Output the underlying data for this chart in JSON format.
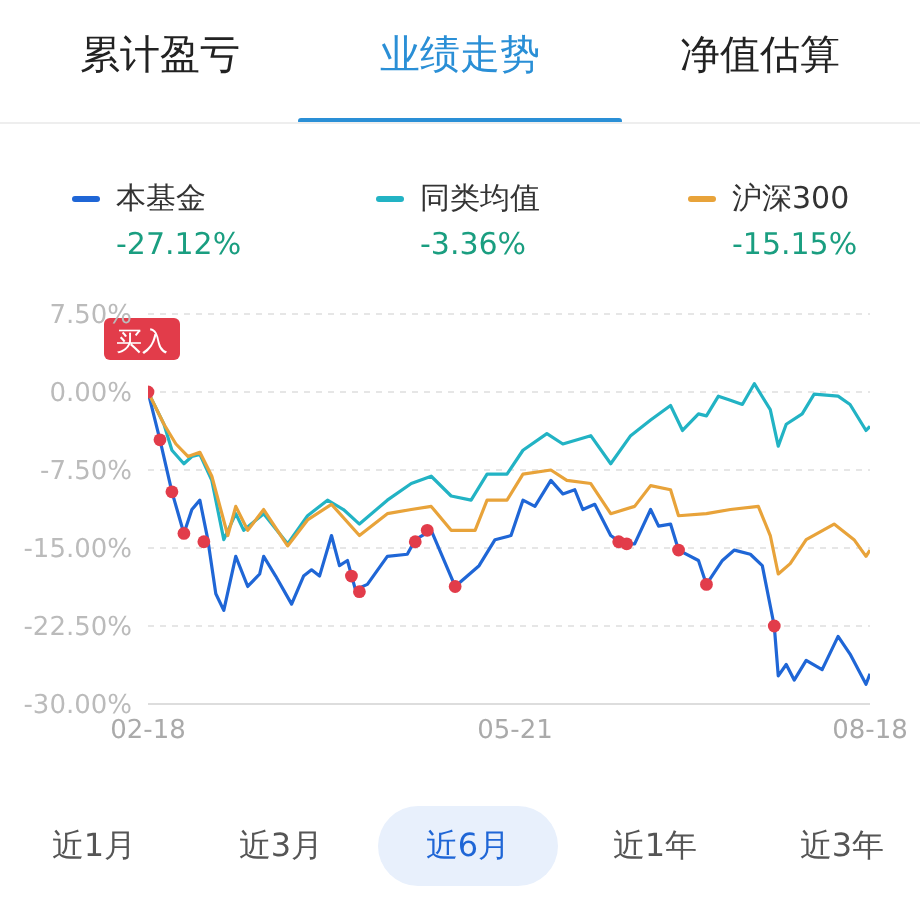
{
  "chart_data": {
    "type": "line",
    "legend": "top",
    "grid": "y",
    "xlim": [
      "--02-18",
      "--08-18"
    ],
    "xticks": [
      {
        "value": "--02-18",
        "label": "02-18"
      },
      {
        "value": "--05-21",
        "label": "05-21"
      },
      {
        "value": "--08-18",
        "label": "08-18"
      }
    ],
    "ylim": [
      -30,
      7.5
    ],
    "yticks": [
      {
        "value": 7.5,
        "label": "7.50%"
      },
      {
        "value": 0,
        "label": "0.00%"
      },
      {
        "value": -7.5,
        "label": "-7.50%"
      },
      {
        "value": -15,
        "label": "-15.00%"
      },
      {
        "value": -22.5,
        "label": "-22.50%"
      },
      {
        "value": -30,
        "label": "-30.00%"
      }
    ],
    "annotations": [
      "累计盈亏",
      "业绩走势",
      "净值估算",
      "-27.12%",
      "-3.36%",
      "-15.15%",
      "近1月",
      "近3月",
      "近6月",
      "近1年",
      "近3年",
      {
        "text": "买入",
        "x": "--02-18",
        "y": 0
      }
    ],
    "series": [
      {
        "name": "本基金",
        "color": "#1f66d6",
        "x": [
          "--02-18",
          "--02-21",
          "--02-24",
          "--02-27",
          "--03-01",
          "--03-03",
          "--03-05",
          "--03-07",
          "--03-09",
          "--03-12",
          "--03-15",
          "--03-18",
          "--03-19",
          "--03-22",
          "--03-26",
          "--03-29",
          "--03-31",
          "--04-02",
          "--04-05",
          "--04-07",
          "--04-09",
          "--04-11",
          "--04-14",
          "--04-19",
          "--04-24",
          "--04-26",
          "--04-30",
          "--05-06",
          "--05-12",
          "--05-16",
          "--05-20",
          "--05-23",
          "--05-26",
          "--05-30",
          "--06-02",
          "--06-05",
          "--06-07",
          "--06-10",
          "--06-14",
          "--06-17",
          "--06-20",
          "--06-24",
          "--06-26",
          "--06-29",
          "--07-01",
          "--07-06",
          "--07-08",
          "--07-12",
          "--07-15",
          "--07-19",
          "--07-22",
          "--07-25",
          "--07-26",
          "--07-28",
          "--07-30",
          "--08-02",
          "--08-06",
          "--08-10",
          "--08-13",
          "--08-17",
          "--08-18"
        ],
        "values": [
          0,
          -4.6,
          -9.6,
          -13.6,
          -11.3,
          -10.4,
          -14.2,
          -19.4,
          -21,
          -15.8,
          -18.7,
          -17.5,
          -15.8,
          -17.7,
          -20.4,
          -17.7,
          -17.1,
          -17.7,
          -13.8,
          -16.7,
          -16.2,
          -19,
          -18.5,
          -15.8,
          -15.6,
          -14.2,
          -13.3,
          -18.7,
          -16.7,
          -14.2,
          -13.8,
          -10.4,
          -11,
          -8.5,
          -9.8,
          -9.4,
          -11.3,
          -10.8,
          -13.8,
          -14.6,
          -14.6,
          -11.3,
          -12.9,
          -12.7,
          -15.2,
          -16.2,
          -18.5,
          -16.2,
          -15.2,
          -15.6,
          -16.7,
          -22.5,
          -27.3,
          -26.2,
          -27.7,
          -25.8,
          -26.7,
          -23.5,
          -25.2,
          -28.1,
          -27.1
        ]
      },
      {
        "name": "同类均值",
        "color": "#22b3c4",
        "x": [
          "--02-18",
          "--02-22",
          "--02-24",
          "--02-27",
          "--03-01",
          "--03-03",
          "--03-06",
          "--03-09",
          "--03-12",
          "--03-14",
          "--03-19",
          "--03-25",
          "--03-30",
          "--04-04",
          "--04-08",
          "--04-12",
          "--04-19",
          "--04-25",
          "--04-30",
          "--05-05",
          "--05-10",
          "--05-14",
          "--05-19",
          "--05-23",
          "--05-29",
          "--06-02",
          "--06-09",
          "--06-14",
          "--06-19",
          "--06-24",
          "--06-29",
          "--07-02",
          "--07-06",
          "--07-08",
          "--07-11",
          "--07-14",
          "--07-17",
          "--07-20",
          "--07-24",
          "--07-26",
          "--07-28",
          "--08-01",
          "--08-04",
          "--08-10",
          "--08-13",
          "--08-17",
          "--08-18"
        ],
        "values": [
          0,
          -3.1,
          -5.6,
          -6.9,
          -6.2,
          -6,
          -8.5,
          -14.2,
          -11.7,
          -13.3,
          -11.7,
          -14.6,
          -11.9,
          -10.4,
          -11.3,
          -12.7,
          -10.4,
          -8.8,
          -8.1,
          -10,
          -10.4,
          -7.9,
          -7.9,
          -5.6,
          -4,
          -5,
          -4.2,
          -6.9,
          -4.2,
          -2.7,
          -1.3,
          -3.7,
          -2.1,
          -2.3,
          -0.4,
          -0.8,
          -1.2,
          0.8,
          -1.7,
          -5.2,
          -3.1,
          -2.1,
          -0.2,
          -0.4,
          -1.2,
          -3.7,
          -3.3
        ]
      },
      {
        "name": "沪深300",
        "color": "#e8a33a",
        "x": [
          "--02-18",
          "--02-22",
          "--02-25",
          "--02-28",
          "--03-03",
          "--03-06",
          "--03-10",
          "--03-12",
          "--03-15",
          "--03-19",
          "--03-25",
          "--03-30",
          "--04-05",
          "--04-12",
          "--04-19",
          "--04-25",
          "--04-30",
          "--05-05",
          "--05-11",
          "--05-14",
          "--05-19",
          "--05-23",
          "--05-30",
          "--06-03",
          "--06-09",
          "--06-14",
          "--06-20",
          "--06-24",
          "--06-29",
          "--07-01",
          "--07-08",
          "--07-14",
          "--07-21",
          "--07-24",
          "--07-26",
          "--07-29",
          "--08-02",
          "--08-09",
          "--08-14",
          "--08-17",
          "--08-18"
        ],
        "values": [
          0,
          -3.1,
          -5,
          -6.2,
          -5.8,
          -8.1,
          -13.8,
          -11,
          -13.3,
          -11.3,
          -14.8,
          -12.3,
          -10.8,
          -13.8,
          -11.7,
          -11.3,
          -11,
          -13.3,
          -13.3,
          -10.4,
          -10.4,
          -7.9,
          -7.5,
          -8.5,
          -8.8,
          -11.7,
          -11,
          -9,
          -9.4,
          -11.9,
          -11.7,
          -11.3,
          -11,
          -13.8,
          -17.5,
          -16.5,
          -14.2,
          -12.7,
          -14.2,
          -15.8,
          -15.2
        ]
      },
      {
        "type": "scatter",
        "color": "#e23c4a",
        "x": [
          "--02-18",
          "--02-21",
          "--02-24",
          "--02-27",
          "--03-04",
          "--04-10",
          "--04-12",
          "--04-26",
          "--04-29",
          "--05-06",
          "--06-16",
          "--06-18",
          "--07-01",
          "--07-08",
          "--07-25"
        ],
        "values": [
          0,
          -4.6,
          -9.6,
          -13.6,
          -14.4,
          -17.7,
          -19.2,
          -14.4,
          -13.3,
          -18.7,
          -14.4,
          -14.6,
          -15.2,
          -18.5,
          -22.5
        ]
      }
    ]
  }
}
